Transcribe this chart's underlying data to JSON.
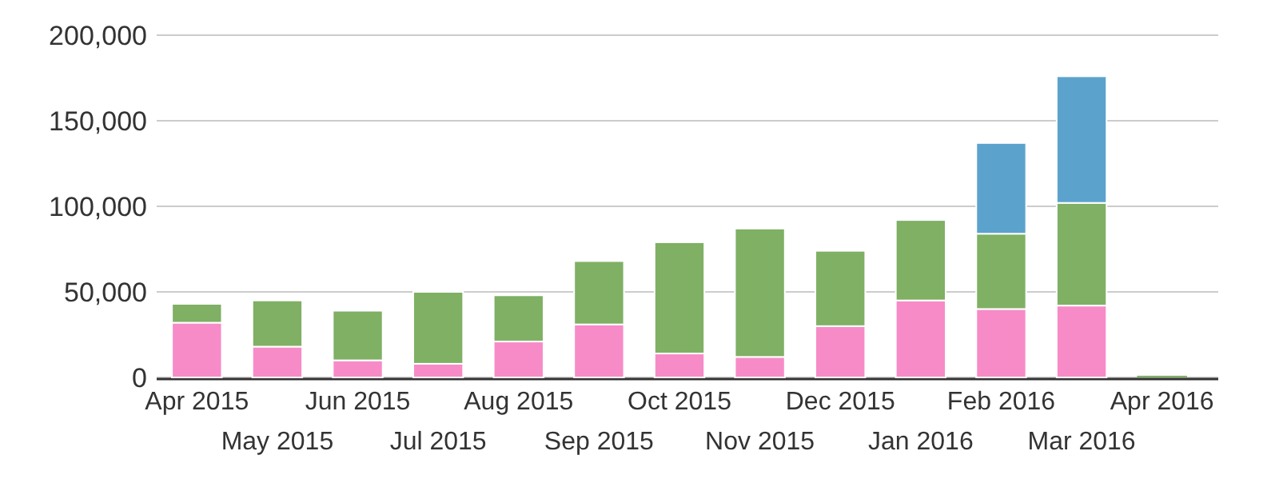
{
  "chart_data": {
    "type": "bar",
    "stacked": true,
    "categories": [
      "Apr 2015",
      "May 2015",
      "Jun 2015",
      "Jul 2015",
      "Aug 2015",
      "Sep 2015",
      "Oct 2015",
      "Nov 2015",
      "Dec 2015",
      "Jan 2016",
      "Feb 2016",
      "Mar 2016",
      "Apr 2016"
    ],
    "series": [
      {
        "color": "#f78bc8",
        "values": [
          32000,
          18000,
          10000,
          8000,
          21000,
          31000,
          14000,
          12000,
          30000,
          45000,
          40000,
          42000,
          0
        ]
      },
      {
        "color": "#7fb064",
        "values": [
          11000,
          27000,
          29000,
          42000,
          27000,
          37000,
          65000,
          75000,
          44000,
          47000,
          44000,
          60000,
          1000
        ]
      },
      {
        "color": "#5ba3cc",
        "values": [
          0,
          0,
          0,
          0,
          0,
          0,
          0,
          0,
          0,
          0,
          53000,
          74000,
          0
        ]
      }
    ],
    "ylim": [
      0,
      200000
    ],
    "yticks": [
      {
        "value": 0,
        "label": "0"
      },
      {
        "value": 50000,
        "label": "50,000"
      },
      {
        "value": 100000,
        "label": "100,000"
      },
      {
        "value": 150000,
        "label": "150,000"
      },
      {
        "value": 200000,
        "label": "200,000"
      }
    ],
    "grid": "y"
  }
}
